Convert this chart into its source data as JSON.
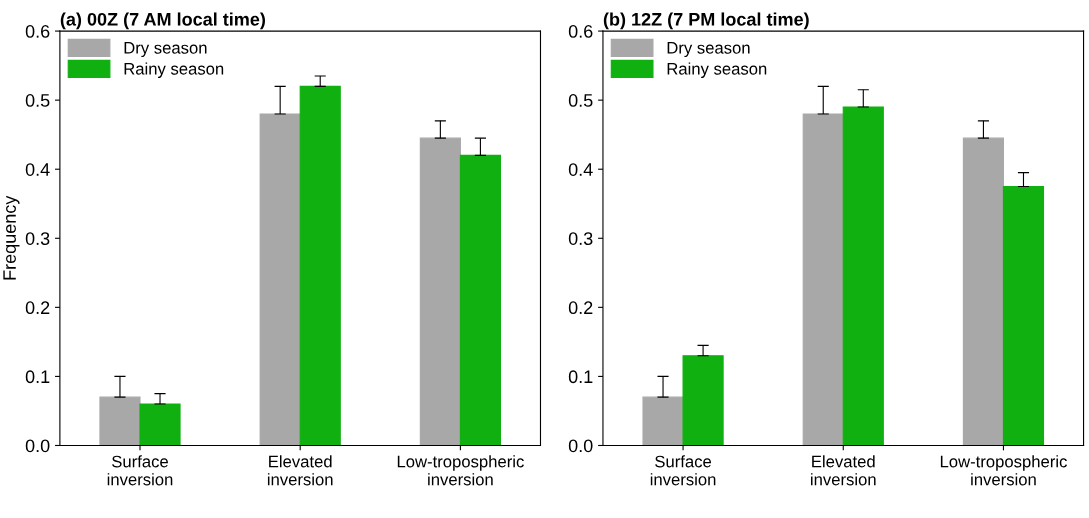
{
  "chart_data": [
    {
      "type": "bar",
      "title": "(a) 00Z (7 AM local time)",
      "ylabel": "Frequency",
      "categories": [
        "Surface\ninversion",
        "Elevated\ninversion",
        "Low-tropospheric\ninversion"
      ],
      "ylim": [
        0,
        0.6
      ],
      "yticks": [
        {
          "value": 0,
          "label": "0.0"
        },
        0.1,
        0.2,
        0.3,
        0.4,
        0.5,
        0.6
      ],
      "legend": "top left",
      "grid": false,
      "series": [
        {
          "name": "Dry season",
          "color": "#a8a8a8",
          "values": [
            0.07,
            0.48,
            0.445
          ],
          "errors": [
            [
              0.07,
              0.1
            ],
            [
              0.48,
              0.52
            ],
            [
              0.445,
              0.47
            ]
          ]
        },
        {
          "name": "Rainy season",
          "color": "#10b010",
          "values": [
            0.06,
            0.52,
            0.42
          ],
          "errors": [
            [
              0.06,
              0.075
            ],
            [
              0.52,
              0.535
            ],
            [
              0.42,
              0.445
            ]
          ]
        }
      ]
    },
    {
      "type": "bar",
      "title": "(b) 12Z (7 PM local time)",
      "categories": [
        "Surface\ninversion",
        "Elevated\ninversion",
        "Low-tropospheric\ninversion"
      ],
      "ylim": [
        0,
        0.6
      ],
      "yticks": [
        {
          "value": 0,
          "label": "0.0"
        },
        0.1,
        0.2,
        0.3,
        0.4,
        0.5,
        0.6
      ],
      "legend": "top left",
      "grid": false,
      "series": [
        {
          "name": "Dry season",
          "color": "#a8a8a8",
          "values": [
            0.07,
            0.48,
            0.445
          ],
          "errors": [
            [
              0.07,
              0.1
            ],
            [
              0.48,
              0.52
            ],
            [
              0.445,
              0.47
            ]
          ]
        },
        {
          "name": "Rainy season",
          "color": "#10b010",
          "values": [
            0.13,
            0.49,
            0.375
          ],
          "errors": [
            [
              0.13,
              0.145
            ],
            [
              0.49,
              0.515
            ],
            [
              0.375,
              0.395
            ]
          ]
        }
      ]
    }
  ]
}
